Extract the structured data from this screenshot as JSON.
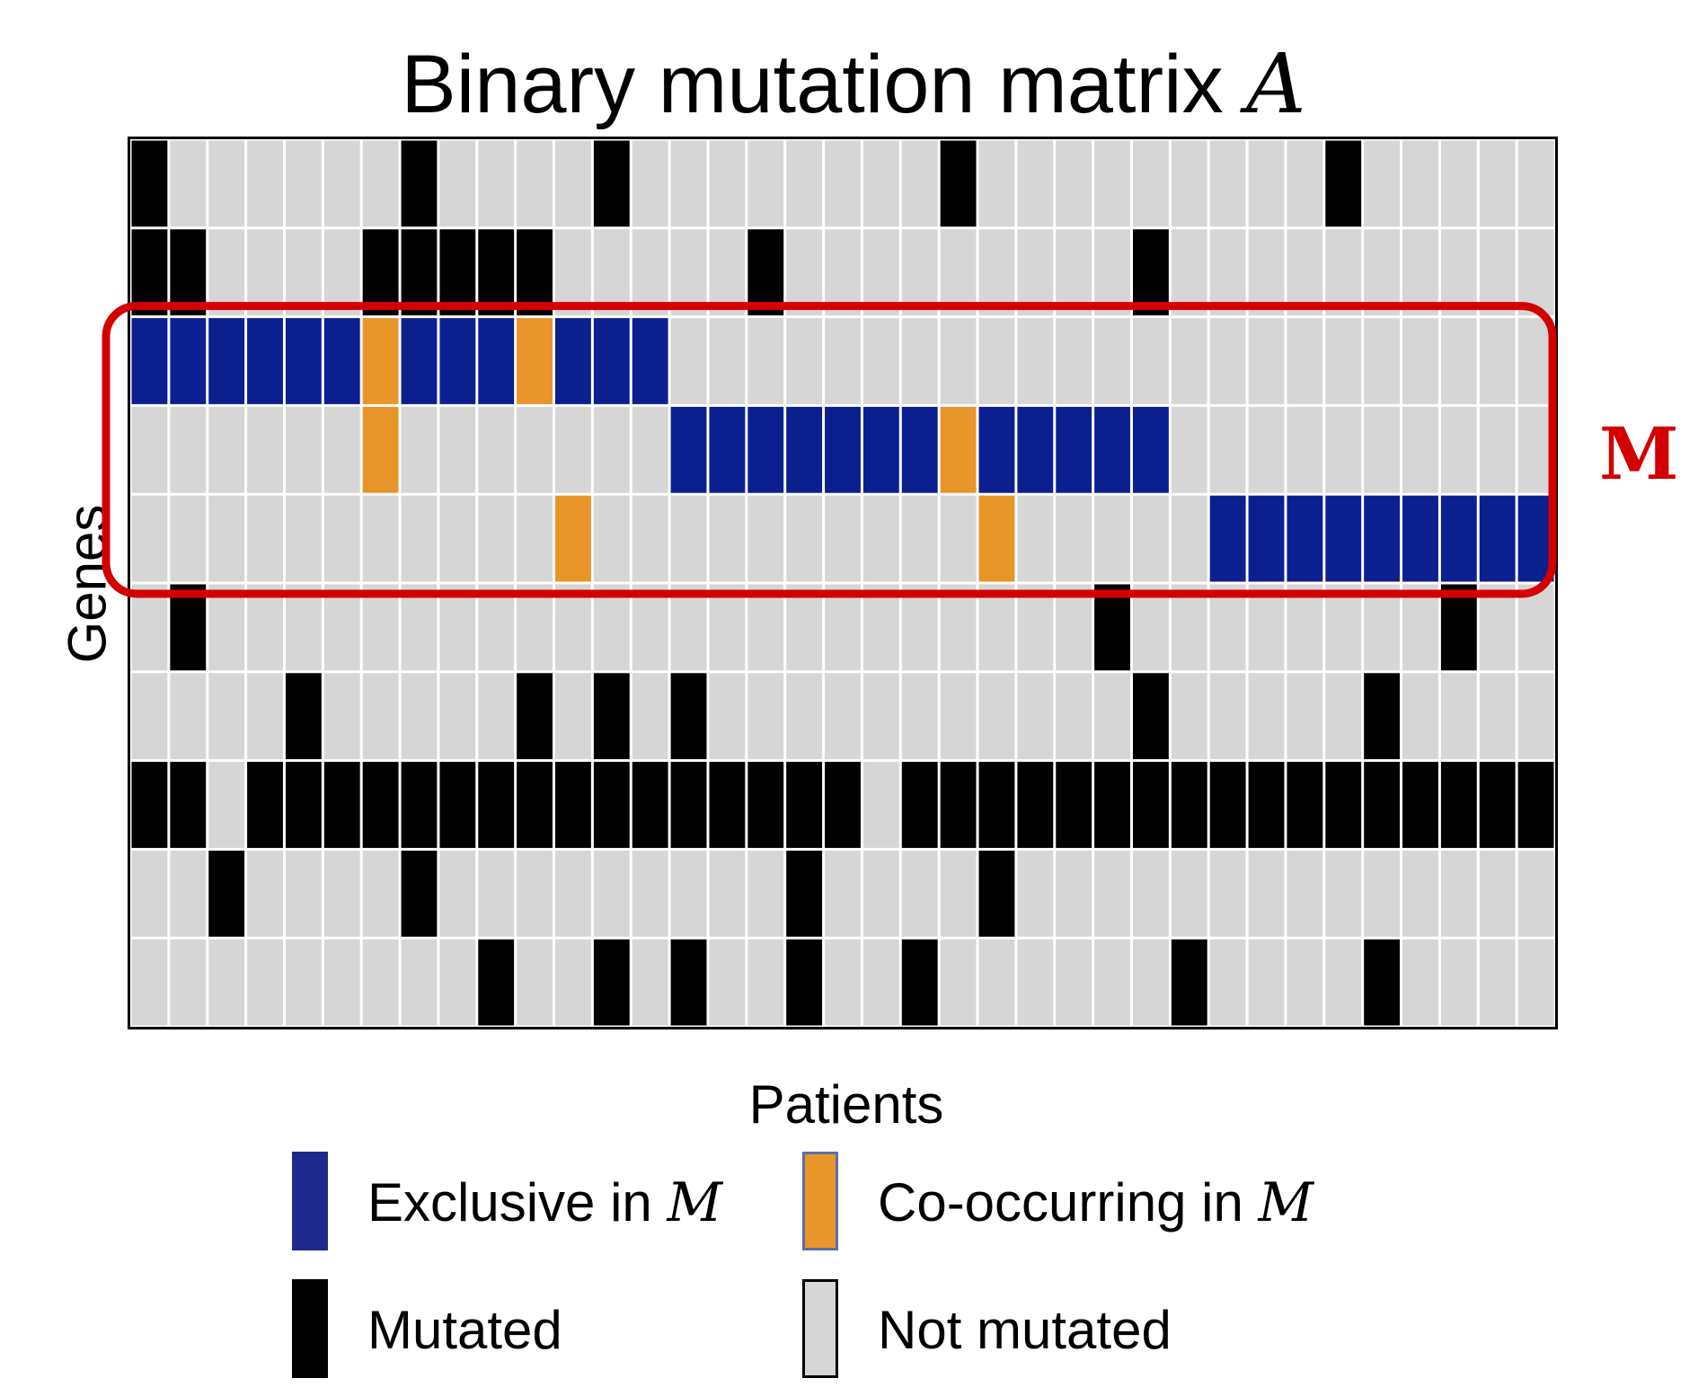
{
  "figure": {
    "title_text": "Binary mutation matrix ",
    "title_var": "A",
    "xlabel": "Patients",
    "ylabel": "Genes",
    "module_label": "M"
  },
  "colors": {
    "exclusive": "#0c1f8e",
    "cooccurring": "#e8952a",
    "mutated": "#000000",
    "not_mutated": "#d6d6d6",
    "gridline": "#ffffff",
    "module_outline": "#d40000"
  },
  "matrix": {
    "cell_codes": {
      "0": "not-mutated",
      "1": "mutated",
      "2": "exclusive-in-M",
      "3": "co-occurring-in-M"
    },
    "module_rows": [
      2,
      3,
      4
    ],
    "rows": [
      "1000000100001000000001000000000100000",
      "1100001111100000100000000010000000000",
      "2222223222322200000000000000000000000",
      "0000003000000022222223222220000000000",
      "0000000000030000000000300000222222222",
      "0100000000000000000000000100000000100",
      "0000100000101010000000000010000010000",
      "1101111111111111111011111111111111111",
      "0010000100000000010000100000000000000",
      "0000000001001010010010000001000010000"
    ]
  },
  "legend": [
    {
      "id": "exclusive",
      "text": "Exclusive in ",
      "var": "M",
      "color": "#1e2a8e",
      "border": "#1e2a8e"
    },
    {
      "id": "cooccurring",
      "text": "Co-occurring in ",
      "var": "M",
      "color": "#e8952a",
      "border": "#5b6fa8"
    },
    {
      "id": "mutated",
      "text": "Mutated",
      "var": "",
      "color": "#000000",
      "border": "#000000"
    },
    {
      "id": "not-mutated",
      "text": "Not mutated",
      "var": "",
      "color": "#d6d6d6",
      "border": "#000000"
    }
  ]
}
